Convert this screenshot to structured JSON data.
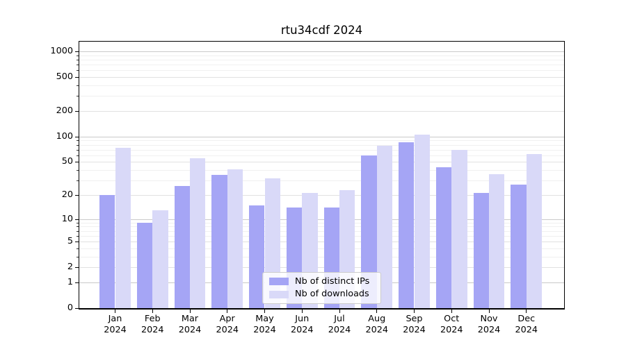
{
  "title": "rtu34cdf 2024",
  "colors": {
    "distinct_ips": "#a5a5f5",
    "downloads": "#d9d9f8",
    "grid_major": "#c9c9c9",
    "grid_mid": "#e1e1e1",
    "grid_minor": "#f0f0f0",
    "axis": "#000000",
    "legend_border": "#cccccc"
  },
  "legend": {
    "items": [
      {
        "label": "Nb of distinct IPs",
        "series": "distinct_ips"
      },
      {
        "label": "Nb of downloads",
        "series": "downloads"
      }
    ]
  },
  "chart_data": {
    "type": "bar",
    "title": "rtu34cdf 2024",
    "scale": "log10(1+y), 0 at baseline",
    "grid": true,
    "legend_position": "lower center",
    "ylim": [
      0,
      1300
    ],
    "y_ticks": [
      1000,
      500,
      200,
      100,
      50,
      20,
      10,
      5,
      2,
      1,
      0
    ],
    "x": [
      {
        "month": "Jan",
        "year": "2024"
      },
      {
        "month": "Feb",
        "year": "2024"
      },
      {
        "month": "Mar",
        "year": "2024"
      },
      {
        "month": "Apr",
        "year": "2024"
      },
      {
        "month": "May",
        "year": "2024"
      },
      {
        "month": "Jun",
        "year": "2024"
      },
      {
        "month": "Jul",
        "year": "2024"
      },
      {
        "month": "Aug",
        "year": "2024"
      },
      {
        "month": "Sep",
        "year": "2024"
      },
      {
        "month": "Oct",
        "year": "2024"
      },
      {
        "month": "Nov",
        "year": "2024"
      },
      {
        "month": "Dec",
        "year": "2024"
      }
    ],
    "series": [
      {
        "name": "Nb of distinct IPs",
        "color": "#a5a5f5",
        "values": [
          20,
          9,
          26,
          35,
          15,
          14,
          14,
          60,
          85,
          43,
          21,
          27
        ]
      },
      {
        "name": "Nb of downloads",
        "color": "#d9d9f8",
        "values": [
          74,
          13,
          56,
          41,
          32,
          21,
          23,
          78,
          105,
          70,
          36,
          62
        ]
      }
    ]
  }
}
